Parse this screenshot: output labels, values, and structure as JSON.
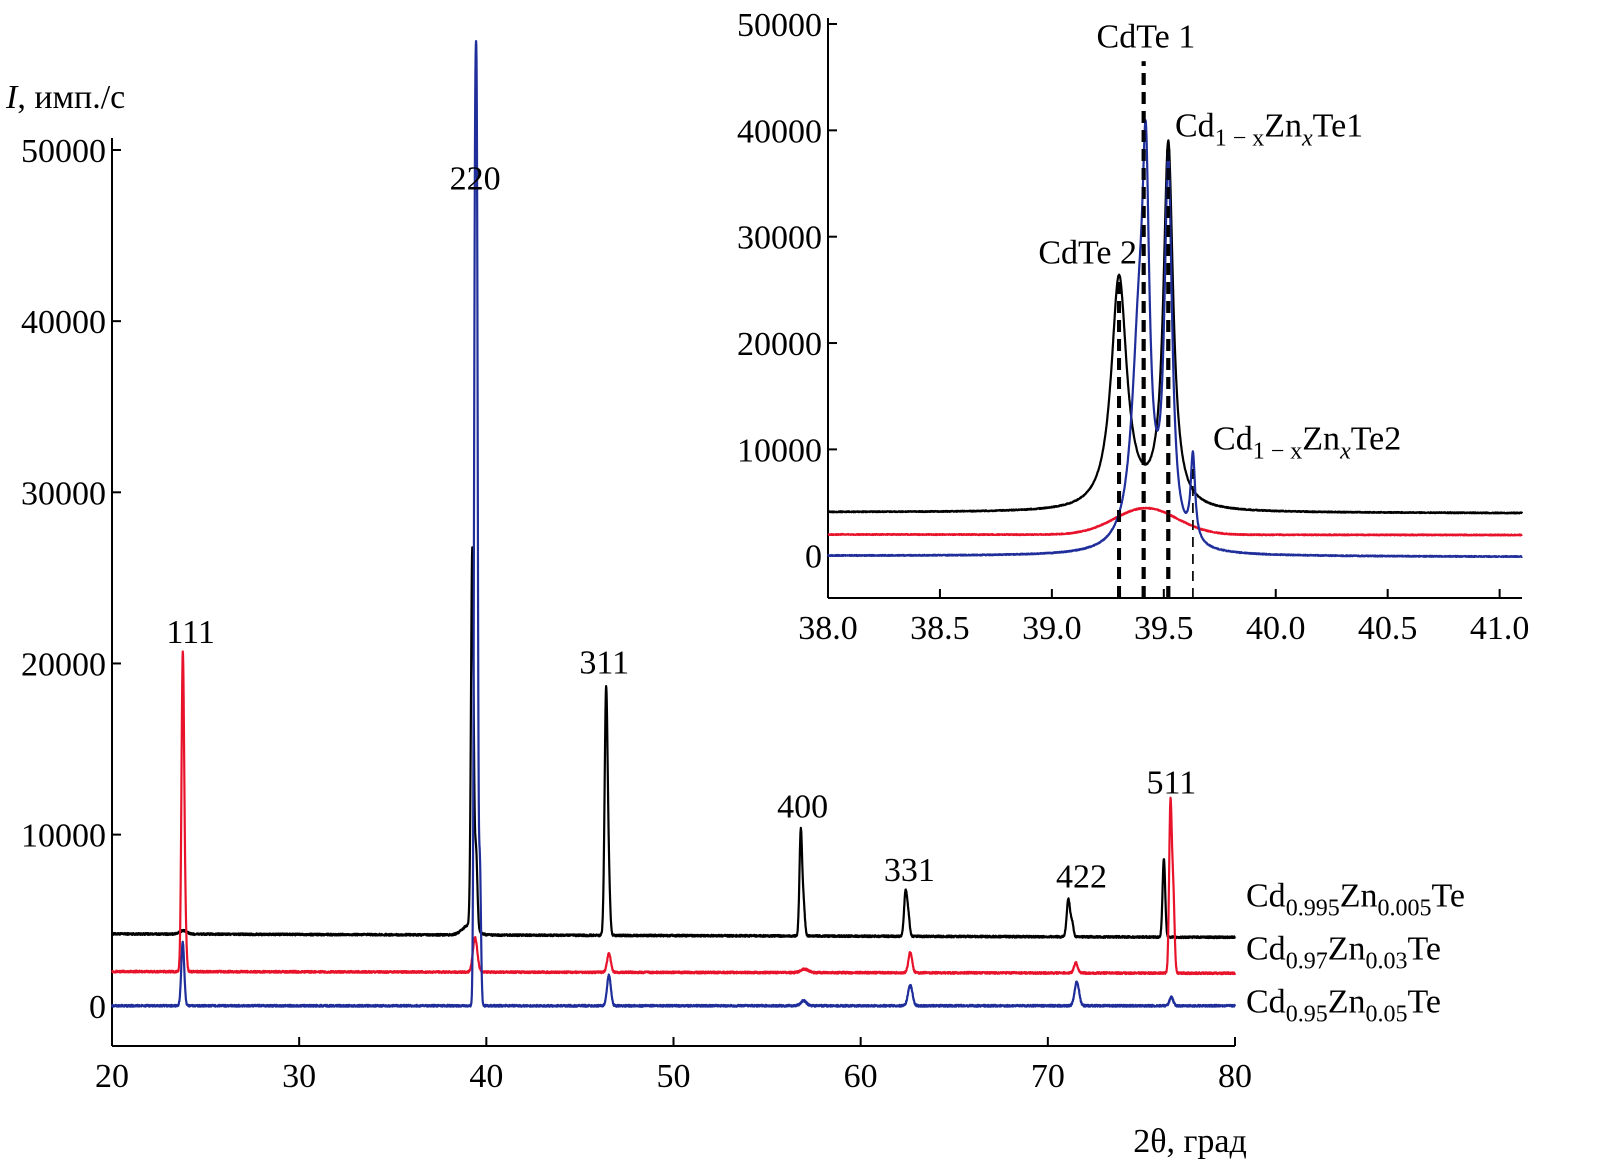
{
  "colors": {
    "black": "#000000",
    "red": "#e8132b",
    "blue": "#1f2e9a"
  },
  "chart_data": [
    {
      "type": "line",
      "role": "main",
      "ylabel_italic": "I",
      "ylabel_rest": ", имп./с",
      "xlabel": "2θ, град",
      "xlim": [
        20,
        80
      ],
      "ylim": [
        -2000,
        50000
      ],
      "xticks": [
        20,
        30,
        40,
        50,
        60,
        70,
        80
      ],
      "xtick_labels": [
        "20",
        "30",
        "40",
        "50",
        "60",
        "70",
        "80"
      ],
      "yticks": [
        0,
        10000,
        20000,
        30000,
        40000,
        50000
      ],
      "ytick_labels": [
        "0",
        "10000",
        "20000",
        "30000",
        "40000",
        "50000"
      ],
      "peak_labels": [
        {
          "text": "111",
          "x": 24.2,
          "y": 21200
        },
        {
          "text": "220",
          "x": 39.4,
          "y": 47700
        },
        {
          "text": "311",
          "x": 46.3,
          "y": 19400
        },
        {
          "text": "400",
          "x": 56.9,
          "y": 11000
        },
        {
          "text": "331",
          "x": 62.6,
          "y": 7300
        },
        {
          "text": "422",
          "x": 71.8,
          "y": 6900
        },
        {
          "text": "511",
          "x": 76.6,
          "y": 12400
        }
      ],
      "series": [
        {
          "name": "Cd0.995Zn0.005Te",
          "color_key": "black",
          "legend_parts": [
            [
              "Cd",
              ""
            ],
            [
              "0.995",
              "sub"
            ],
            [
              "Zn",
              ""
            ],
            [
              "0.005",
              "sub"
            ],
            [
              "Te",
              ""
            ]
          ],
          "legend_y": 5800,
          "baseline_start": 4200,
          "baseline_end": 4000,
          "peaks": [
            {
              "x": 23.8,
              "h": 200,
              "w": 0.2
            },
            {
              "x": 39.1,
              "h": 600,
              "w": 0.35
            },
            {
              "x": 39.25,
              "h": 22000,
              "w": 0.07
            },
            {
              "x": 39.45,
              "h": 4500,
              "w": 0.07
            },
            {
              "x": 46.4,
              "h": 14300,
              "w": 0.08
            },
            {
              "x": 46.55,
              "h": 2500,
              "w": 0.07
            },
            {
              "x": 56.8,
              "h": 6100,
              "w": 0.07
            },
            {
              "x": 56.95,
              "h": 1800,
              "w": 0.07
            },
            {
              "x": 62.4,
              "h": 2600,
              "w": 0.08
            },
            {
              "x": 62.55,
              "h": 1100,
              "w": 0.07
            },
            {
              "x": 71.1,
              "h": 2200,
              "w": 0.09
            },
            {
              "x": 71.3,
              "h": 800,
              "w": 0.07
            },
            {
              "x": 76.2,
              "h": 4600,
              "w": 0.07
            }
          ]
        },
        {
          "name": "Cd0.97Zn0.03Te",
          "color_key": "red",
          "legend_parts": [
            [
              "Cd",
              ""
            ],
            [
              "0.97",
              "sub"
            ],
            [
              "Zn",
              ""
            ],
            [
              "0.03",
              "sub"
            ],
            [
              "Te",
              ""
            ]
          ],
          "legend_y": 2700,
          "baseline_start": 2000,
          "baseline_end": 1900,
          "peaks": [
            {
              "x": 23.78,
              "h": 18000,
              "w": 0.07
            },
            {
              "x": 23.9,
              "h": 3000,
              "w": 0.07
            },
            {
              "x": 39.4,
              "h": 2000,
              "w": 0.12
            },
            {
              "x": 46.55,
              "h": 1100,
              "w": 0.1
            },
            {
              "x": 57.0,
              "h": 200,
              "w": 0.2
            },
            {
              "x": 62.65,
              "h": 1200,
              "w": 0.1
            },
            {
              "x": 71.5,
              "h": 600,
              "w": 0.1
            },
            {
              "x": 76.55,
              "h": 9700,
              "w": 0.07
            },
            {
              "x": 76.7,
              "h": 4600,
              "w": 0.07
            }
          ]
        },
        {
          "name": "Cd0.95Zn0.05Te",
          "color_key": "blue",
          "legend_parts": [
            [
              "Cd",
              ""
            ],
            [
              "0.95",
              "sub"
            ],
            [
              "Zn",
              ""
            ],
            [
              "0.05",
              "sub"
            ],
            [
              "Te",
              ""
            ]
          ],
          "legend_y": -400,
          "baseline_start": 0,
          "baseline_end": 0,
          "peaks": [
            {
              "x": 23.78,
              "h": 3700,
              "w": 0.08
            },
            {
              "x": 39.4,
              "h": 46800,
              "w": 0.06
            },
            {
              "x": 39.5,
              "h": 38300,
              "w": 0.05
            },
            {
              "x": 39.65,
              "h": 8600,
              "w": 0.06
            },
            {
              "x": 46.55,
              "h": 1800,
              "w": 0.1
            },
            {
              "x": 56.95,
              "h": 300,
              "w": 0.15
            },
            {
              "x": 62.65,
              "h": 1200,
              "w": 0.12
            },
            {
              "x": 71.55,
              "h": 1400,
              "w": 0.12
            },
            {
              "x": 76.6,
              "h": 500,
              "w": 0.1
            }
          ]
        }
      ]
    },
    {
      "type": "line",
      "role": "inset",
      "xlim": [
        38.0,
        41.1
      ],
      "ylim": [
        -2000,
        50000
      ],
      "xticks": [
        38.0,
        38.5,
        39.0,
        39.5,
        40.0,
        40.5,
        41.0
      ],
      "xtick_labels": [
        "38.0",
        "38.5",
        "39.0",
        "39.5",
        "40.0",
        "40.5",
        "41.0"
      ],
      "yticks": [
        0,
        10000,
        20000,
        30000,
        40000,
        50000
      ],
      "ytick_labels": [
        "0",
        "10000",
        "20000",
        "30000",
        "40000",
        "50000"
      ],
      "annotations": [
        {
          "parts": [
            [
              "CdTe 1",
              ""
            ]
          ],
          "x": 39.42,
          "y": 47800,
          "anchor": "middle"
        },
        {
          "parts": [
            [
              "CdTe 2",
              ""
            ]
          ],
          "x": 39.16,
          "y": 27500,
          "anchor": "middle"
        },
        {
          "parts": [
            [
              "Cd",
              ""
            ],
            [
              "1 − x",
              "sub"
            ],
            [
              "Zn",
              ""
            ],
            [
              "x",
              "subi"
            ],
            [
              "Te1",
              ""
            ]
          ],
          "x": 39.55,
          "y": 39400,
          "anchor": "start"
        },
        {
          "parts": [
            [
              "Cd",
              ""
            ],
            [
              "1 − x",
              "sub"
            ],
            [
              "Zn",
              ""
            ],
            [
              "x",
              "subi"
            ],
            [
              "Te2",
              ""
            ]
          ],
          "x": 39.72,
          "y": 10000,
          "anchor": "start"
        }
      ],
      "guides": [
        {
          "x": 39.3,
          "y_top": 26000,
          "style": "thick"
        },
        {
          "x": 39.41,
          "y_top": 46500,
          "style": "thick"
        },
        {
          "x": 39.52,
          "y_top": 38200,
          "style": "thick"
        },
        {
          "x": 39.63,
          "y_top": 8400,
          "style": "thin"
        }
      ],
      "series": [
        {
          "name": "Cd0.995Zn0.005Te",
          "color_key": "black",
          "baseline_start": 4100,
          "baseline_end": 4000,
          "peaks": [
            {
              "x": 39.3,
              "h": 21900,
              "w": 0.042,
              "profile": "lorentz"
            },
            {
              "x": 39.52,
              "h": 34200,
              "w": 0.026,
              "profile": "lorentz"
            }
          ]
        },
        {
          "name": "Cd0.97Zn0.03Te",
          "color_key": "red",
          "baseline_start": 2000,
          "baseline_end": 1950,
          "peaks": [
            {
              "x": 39.42,
              "h": 2500,
              "w": 0.14,
              "profile": "gauss"
            }
          ]
        },
        {
          "name": "Cd0.95Zn0.05Te",
          "color_key": "blue",
          "baseline_start": 0,
          "baseline_end": -100,
          "peaks": [
            {
              "x": 39.39,
              "h": 19000,
              "w": 0.04,
              "profile": "lorentz"
            },
            {
              "x": 39.42,
              "h": 27200,
              "w": 0.018,
              "profile": "lorentz"
            },
            {
              "x": 39.52,
              "h": 35400,
              "w": 0.02,
              "profile": "lorentz"
            },
            {
              "x": 39.63,
              "h": 8000,
              "w": 0.012,
              "profile": "lorentz"
            }
          ]
        }
      ]
    }
  ]
}
